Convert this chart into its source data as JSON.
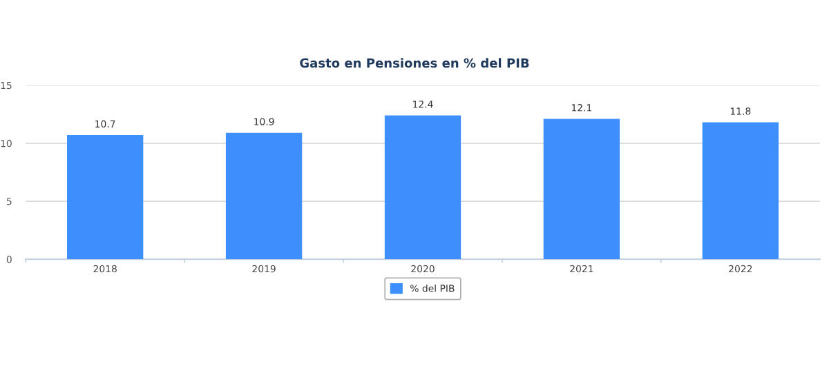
{
  "chart_data": {
    "type": "bar",
    "title": "Gasto en Pensiones en % del PIB",
    "categories": [
      "2018",
      "2019",
      "2020",
      "2021",
      "2022"
    ],
    "series": [
      {
        "name": "% del PIB",
        "color": "#3d8ffe",
        "values": [
          10.7,
          10.9,
          12.4,
          12.1,
          11.8
        ]
      }
    ],
    "ylim": [
      0,
      15
    ],
    "yticks": [
      0,
      5,
      10,
      15
    ],
    "grid": "y",
    "legend": "bottom",
    "data_labels": true
  }
}
